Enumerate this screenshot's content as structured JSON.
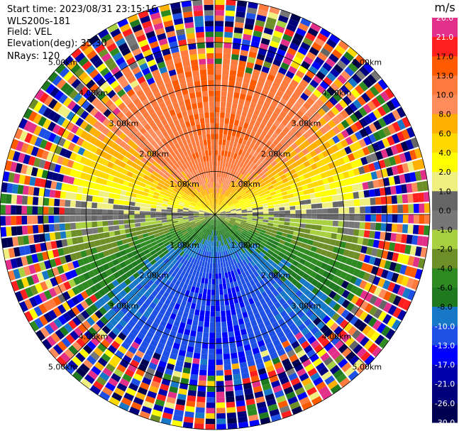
{
  "info": {
    "start_time": "Start time: 2023/08/31 23:15:16",
    "instrument": "WLS200s-181",
    "field": "Field: VEL",
    "elevation": "Elevation(deg): 35.30",
    "nrays": "NRays: 120"
  },
  "chart_data": {
    "type": "heatmap",
    "projection": "polar-ppi",
    "field": "VEL",
    "n_rays": 120,
    "max_range_km": 5.0,
    "unit": "m/s",
    "range_rings_km": [
      1.0,
      2.0,
      3.0,
      4.0,
      5.0
    ],
    "ring_labels": [
      {
        "text": "1.00km",
        "ring_km": 1.0
      },
      {
        "text": "2.00km",
        "ring_km": 2.0
      },
      {
        "text": "3.00km",
        "ring_km": 3.0
      },
      {
        "text": "4.00km",
        "ring_km": 4.0
      },
      {
        "text": "5.00km",
        "ring_km": 5.0
      }
    ],
    "velocity_pattern": {
      "toward_north_azimuth_deg": 0,
      "positive_max_ms": 13.0,
      "negative_min_ms": -13.0,
      "noise_beyond_km": 3.6
    },
    "colorbar": {
      "label": "m/s",
      "ticks": [
        "26.0",
        "21.0",
        "17.0",
        "13.0",
        "10.0",
        "8.0",
        "6.0",
        "4.0",
        "2.0",
        "1.0",
        "0.0",
        "-1.0",
        "-2.0",
        "-4.0",
        "-6.0",
        "-8.0",
        "-10.0",
        "-13.0",
        "-17.0",
        "-21.0",
        "-26.0",
        "-30.0"
      ],
      "colors": [
        "#e2308a",
        "#ff1f1f",
        "#ff5a00",
        "#ff7a3d",
        "#ff8c5a",
        "#ffb000",
        "#ffd800",
        "#ffff00",
        "#f0f080",
        "#666666",
        "#777777",
        "#a8d040",
        "#6e8f28",
        "#2e8b22",
        "#1f7a1f",
        "#1878c8",
        "#1e50e6",
        "#0000ff",
        "#0000aa",
        "#00007a",
        "#000050"
      ]
    }
  }
}
